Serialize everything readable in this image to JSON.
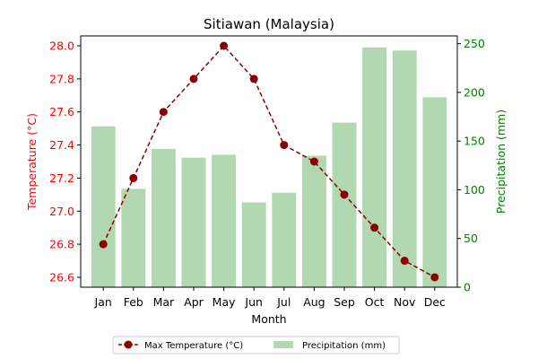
{
  "chart_data": {
    "type": "bar+line",
    "title": "Sitiawan (Malaysia)",
    "xlabel": "Month",
    "ylabel_left": "Temperature (°C)",
    "ylabel_right": "Precipitation (mm)",
    "categories": [
      "Jan",
      "Feb",
      "Mar",
      "Apr",
      "May",
      "Jun",
      "Jul",
      "Aug",
      "Sep",
      "Oct",
      "Nov",
      "Dec"
    ],
    "ylim_left": [
      26.54,
      28.06
    ],
    "yticks_left": [
      "26.6",
      "26.8",
      "27.0",
      "27.2",
      "27.4",
      "27.6",
      "27.8",
      "28.0"
    ],
    "ylim_right": [
      0,
      258
    ],
    "yticks_right": [
      "0",
      "50",
      "100",
      "150",
      "200",
      "250"
    ],
    "series": [
      {
        "name": "Max Temperature (°C)",
        "kind": "line",
        "axis": "left",
        "color": "#8b0000",
        "values": [
          26.8,
          27.2,
          27.6,
          27.8,
          28.0,
          27.8,
          27.4,
          27.3,
          27.1,
          26.9,
          26.7,
          26.6
        ]
      },
      {
        "name": "Precipitation (mm)",
        "kind": "bar",
        "axis": "right",
        "color": "#b2d8b2",
        "values": [
          165,
          101,
          142,
          133,
          136,
          87,
          97,
          135,
          169,
          246,
          243,
          195
        ]
      }
    ],
    "grid": false,
    "legend": "bottom-center"
  }
}
